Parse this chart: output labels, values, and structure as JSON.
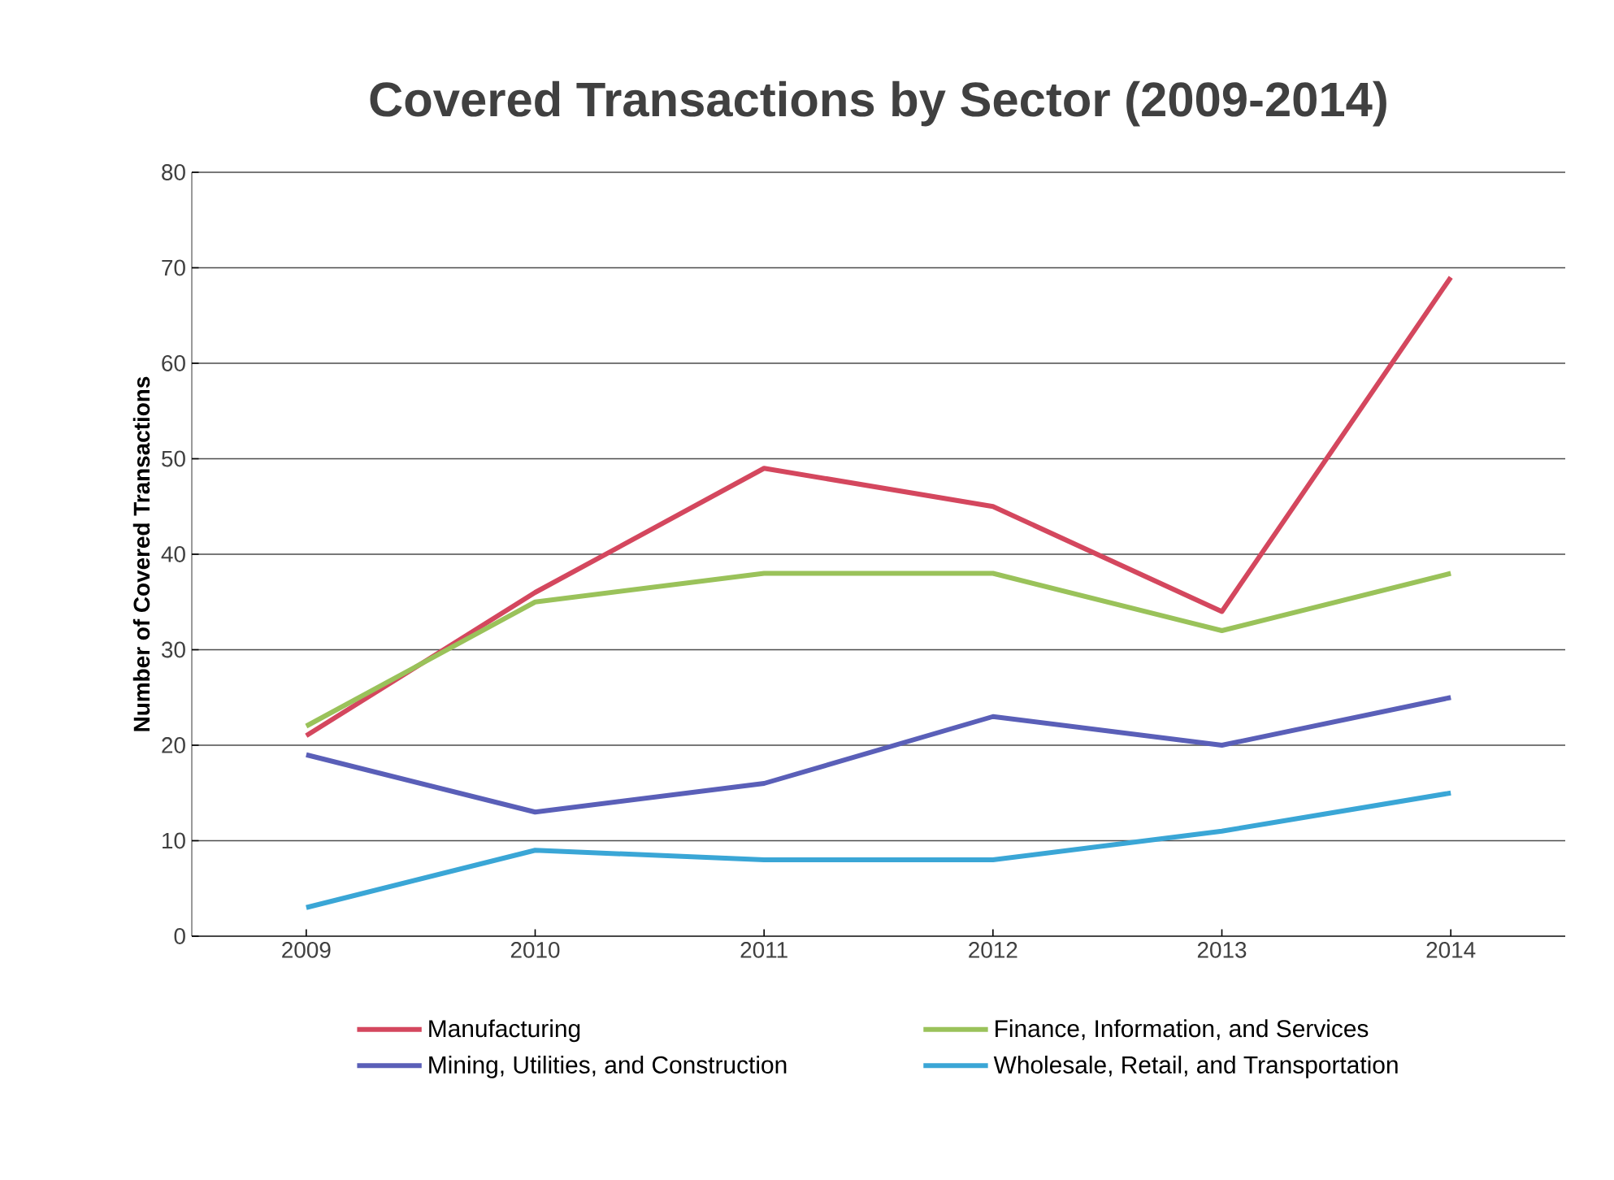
{
  "chart_data": {
    "type": "line",
    "title": "Covered Transactions by Sector (2009-2014)",
    "ylabel": "Number of Covered Transactions",
    "categories": [
      "2009",
      "2010",
      "2011",
      "2012",
      "2013",
      "2014"
    ],
    "series": [
      {
        "name": "Manufacturing",
        "color": "#d4475e",
        "values": [
          21,
          36,
          49,
          45,
          34,
          69
        ]
      },
      {
        "name": "Finance, Information, and Services",
        "color": "#9ac25a",
        "values": [
          22,
          35,
          38,
          38,
          32,
          38
        ]
      },
      {
        "name": "Mining, Utilities, and Construction",
        "color": "#5a5fb8",
        "values": [
          19,
          13,
          16,
          23,
          20,
          25
        ]
      },
      {
        "name": "Wholesale, Retail, and Transportation",
        "color": "#3aa6d6",
        "values": [
          3,
          9,
          8,
          8,
          11,
          15
        ]
      }
    ],
    "ylim": [
      0,
      80
    ],
    "yticks": [
      0,
      10,
      20,
      30,
      40,
      50,
      60,
      70,
      80
    ],
    "grid": "y",
    "legend": "bottom",
    "marker": "none",
    "line_style": "solid"
  }
}
